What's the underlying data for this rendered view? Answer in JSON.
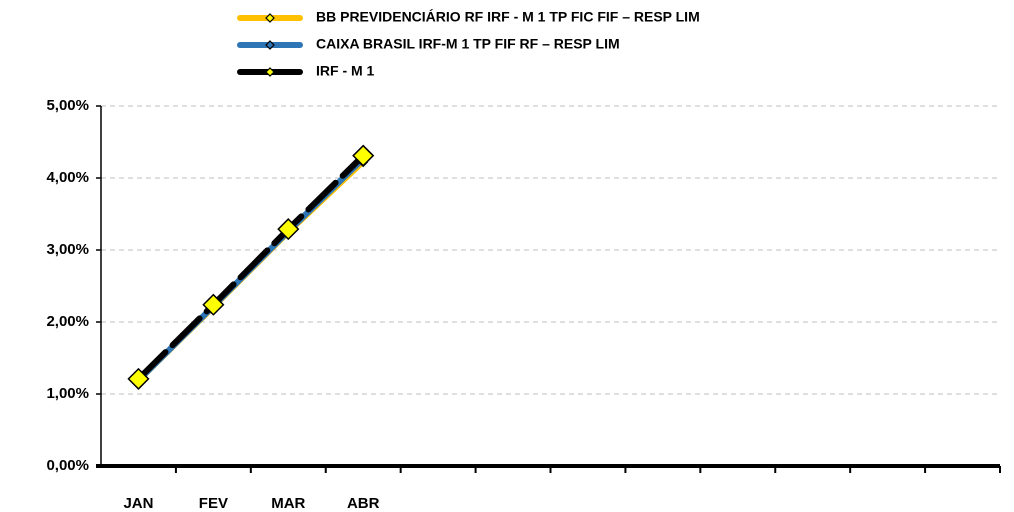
{
  "chart_data": {
    "type": "line",
    "categories": [
      "JAN",
      "FEV",
      "MAR",
      "ABR",
      null,
      null,
      null,
      null,
      null,
      null,
      null,
      null
    ],
    "series": [
      {
        "name": "BB PREVIDENCIÁRIO RF IRF - M 1 TP FIC FIF – RESP LIM",
        "color": "#FFC000",
        "marker_color": "#FFFF00",
        "marker_size": 4,
        "values": [
          1.18,
          2.2,
          3.24,
          4.22,
          null,
          null,
          null,
          null,
          null,
          null,
          null,
          null
        ]
      },
      {
        "name": "CAIXA BRASIL IRF-M 1 TP FIF RF – RESP LIM",
        "color": "#2E75B6",
        "marker_color": "#2E75B6",
        "marker_size": 4,
        "values": [
          1.19,
          2.22,
          3.26,
          4.27,
          null,
          null,
          null,
          null,
          null,
          null,
          null,
          null
        ]
      },
      {
        "name": "IRF - M 1",
        "color": "#000000",
        "marker_color": "#FFFF00",
        "marker_size": 10,
        "values": [
          1.21,
          2.24,
          3.29,
          4.31,
          null,
          null,
          null,
          null,
          null,
          null,
          null,
          null
        ]
      }
    ],
    "ylim": [
      0,
      5
    ],
    "yticks": [
      {
        "value": 0,
        "label": "0,00%"
      },
      {
        "value": 1,
        "label": "1,00%"
      },
      {
        "value": 2,
        "label": "2,00%"
      },
      {
        "value": 3,
        "label": "3,00%"
      },
      {
        "value": 4,
        "label": "4,00%"
      },
      {
        "value": 5,
        "label": "5,00%"
      }
    ],
    "grid": true,
    "legend": "top"
  }
}
